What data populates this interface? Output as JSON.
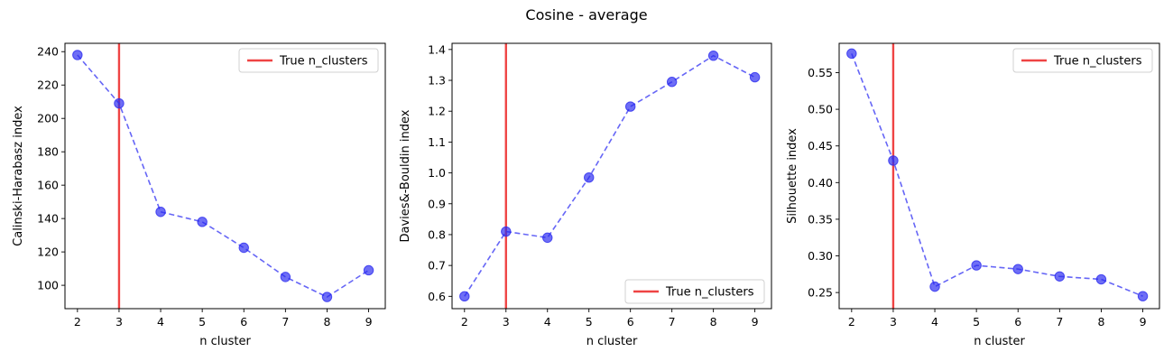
{
  "figure": {
    "suptitle": "Cosine - average"
  },
  "chart_data": [
    {
      "type": "line",
      "x": [
        2,
        3,
        4,
        5,
        6,
        7,
        8,
        9
      ],
      "values": [
        238,
        209,
        144,
        138,
        122.5,
        105,
        93,
        109
      ],
      "xlabel": "n cluster",
      "ylabel": "Calinski-Harabasz index",
      "xlim": [
        1.7,
        9.4
      ],
      "ylim": [
        86,
        245
      ],
      "xticks": [
        2,
        3,
        4,
        5,
        6,
        7,
        8,
        9
      ],
      "yticks": [
        100,
        120,
        140,
        160,
        180,
        200,
        220,
        240
      ],
      "ytick_decimals": 0,
      "vline": {
        "x": 3,
        "label": "True n_clusters",
        "color": "#ef4444"
      },
      "line_color": "#4b4bf5",
      "marker_color": "#2a2af0",
      "legend": "upper right",
      "grid": false
    },
    {
      "type": "line",
      "x": [
        2,
        3,
        4,
        5,
        6,
        7,
        8,
        9
      ],
      "values": [
        0.6,
        0.81,
        0.79,
        0.985,
        1.215,
        1.295,
        1.38,
        1.31
      ],
      "xlabel": "n cluster",
      "ylabel": "Davies&-Bouldin index",
      "xlim": [
        1.7,
        9.4
      ],
      "ylim": [
        0.56,
        1.42
      ],
      "xticks": [
        2,
        3,
        4,
        5,
        6,
        7,
        8,
        9
      ],
      "yticks": [
        0.6,
        0.7,
        0.8,
        0.9,
        1.0,
        1.1,
        1.2,
        1.3,
        1.4
      ],
      "ytick_decimals": 1,
      "vline": {
        "x": 3,
        "label": "True n_clusters",
        "color": "#ef4444"
      },
      "line_color": "#4b4bf5",
      "marker_color": "#2a2af0",
      "legend": "lower right",
      "grid": false
    },
    {
      "type": "line",
      "x": [
        2,
        3,
        4,
        5,
        6,
        7,
        8,
        9
      ],
      "values": [
        0.576,
        0.43,
        0.258,
        0.287,
        0.282,
        0.272,
        0.268,
        0.245
      ],
      "xlabel": "n cluster",
      "ylabel": "Silhouette index",
      "xlim": [
        1.7,
        9.4
      ],
      "ylim": [
        0.228,
        0.59
      ],
      "xticks": [
        2,
        3,
        4,
        5,
        6,
        7,
        8,
        9
      ],
      "yticks": [
        0.25,
        0.3,
        0.35,
        0.4,
        0.45,
        0.5,
        0.55
      ],
      "ytick_decimals": 2,
      "vline": {
        "x": 3,
        "label": "True n_clusters",
        "color": "#ef4444"
      },
      "line_color": "#4b4bf5",
      "marker_color": "#2a2af0",
      "legend": "upper right",
      "grid": false
    }
  ]
}
